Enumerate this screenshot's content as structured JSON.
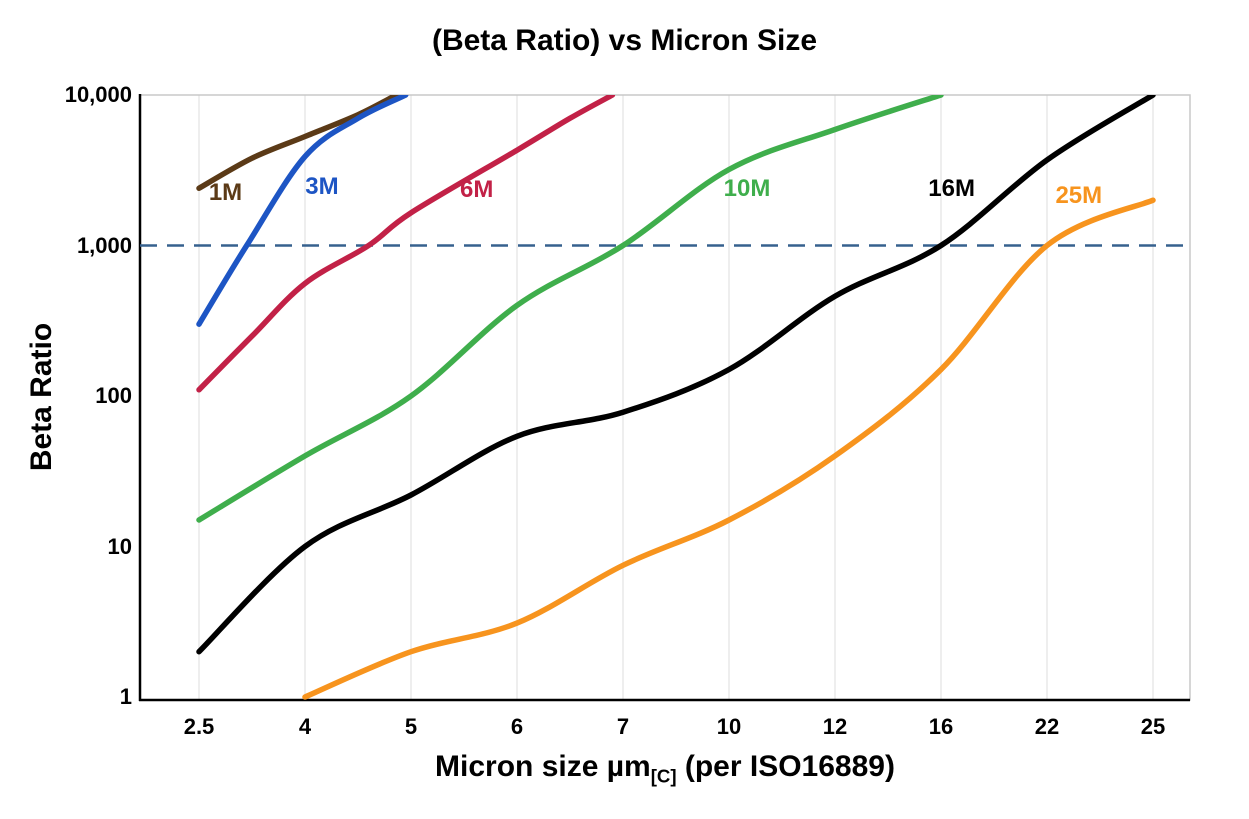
{
  "chart_data": {
    "type": "line",
    "title": "(Beta Ratio) vs Micron Size",
    "ylabel": "Beta Ratio",
    "xlabel_main": "Micron size µm",
    "xlabel_sub": "[C]",
    "xlabel_suffix": " (per ISO16889)",
    "x_categories": [
      "2.5",
      "4",
      "5",
      "6",
      "7",
      "10",
      "12",
      "16",
      "22",
      "25"
    ],
    "y_scale": "log",
    "y_range": [
      1,
      10000
    ],
    "y_ticks": [
      {
        "label": "1",
        "value": 1
      },
      {
        "label": "10",
        "value": 10
      },
      {
        "label": "100",
        "value": 100
      },
      {
        "label": "1,000",
        "value": 1000
      },
      {
        "label": "10,000",
        "value": 10000
      }
    ],
    "grid": "vertical",
    "grid_color": "#e4e4e4",
    "threshold": {
      "value": 1000,
      "color": "#36618e",
      "style": "dashed"
    },
    "series": [
      {
        "name": "1M",
        "color": "#5b3a17",
        "points": [
          [
            0,
            2400
          ],
          [
            0.5,
            3800
          ],
          [
            1,
            5300
          ],
          [
            1.5,
            7400
          ],
          [
            1.86,
            10000
          ]
        ],
        "label_at": [
          0.25,
          2200
        ]
      },
      {
        "name": "3M",
        "color": "#1d55c4",
        "points": [
          [
            0,
            300
          ],
          [
            0.45,
            1000
          ],
          [
            1,
            3900
          ],
          [
            1.5,
            7000
          ],
          [
            1.95,
            10000
          ]
        ],
        "label_at": [
          1.16,
          2400
        ]
      },
      {
        "name": "6M",
        "color": "#c22147",
        "points": [
          [
            0,
            110
          ],
          [
            0.5,
            250
          ],
          [
            1,
            560
          ],
          [
            1.6,
            1000
          ],
          [
            2,
            1650
          ],
          [
            3,
            4300
          ],
          [
            3.5,
            7000
          ],
          [
            3.9,
            10000
          ]
        ],
        "label_at": [
          2.62,
          2300
        ]
      },
      {
        "name": "10M",
        "color": "#3fae4c",
        "points": [
          [
            0,
            15
          ],
          [
            1,
            40
          ],
          [
            2,
            100
          ],
          [
            3,
            400
          ],
          [
            4,
            1000
          ],
          [
            5,
            3200
          ],
          [
            6,
            5900
          ],
          [
            7,
            10000
          ]
        ],
        "label_at": [
          5.17,
          2350
        ]
      },
      {
        "name": "16M",
        "color": "#000000",
        "points": [
          [
            0,
            2
          ],
          [
            1,
            10
          ],
          [
            2,
            22
          ],
          [
            3,
            54
          ],
          [
            4,
            78
          ],
          [
            5,
            150
          ],
          [
            6,
            460
          ],
          [
            7,
            1000
          ],
          [
            8,
            3700
          ],
          [
            9,
            10000
          ]
        ],
        "label_at": [
          7.1,
          2350
        ]
      },
      {
        "name": "25M",
        "color": "#f7941e",
        "points": [
          [
            1,
            1
          ],
          [
            2,
            2
          ],
          [
            3,
            3.1
          ],
          [
            4,
            7.5
          ],
          [
            5,
            15
          ],
          [
            6,
            40
          ],
          [
            7,
            150
          ],
          [
            8,
            1000
          ],
          [
            9,
            2000
          ]
        ],
        "label_at": [
          8.3,
          2100
        ]
      }
    ]
  }
}
